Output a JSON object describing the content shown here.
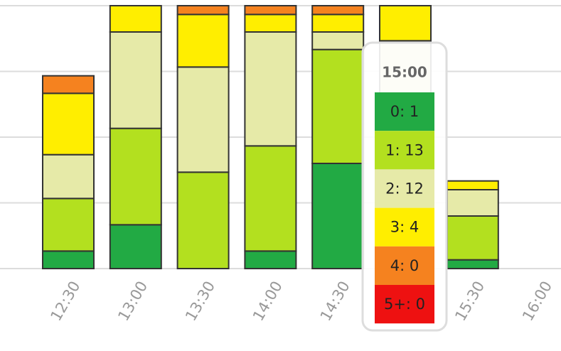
{
  "chart_data": {
    "type": "stacked_bar",
    "categories": [
      "12:30",
      "13:00",
      "13:30",
      "14:00",
      "14:30",
      "15:00",
      "15:30",
      "16:00"
    ],
    "series": [
      {
        "name": "0",
        "color": "#22aa44",
        "values": [
          2,
          5,
          0,
          2,
          12,
          1,
          1,
          0
        ]
      },
      {
        "name": "1",
        "color": "#b3e01f",
        "values": [
          6,
          11,
          11,
          12,
          13,
          13,
          5,
          0
        ]
      },
      {
        "name": "2",
        "color": "#e6eaa8",
        "values": [
          5,
          11,
          12,
          13,
          2,
          12,
          3,
          0
        ]
      },
      {
        "name": "3",
        "color": "#ffee00",
        "values": [
          7,
          3,
          6,
          2,
          2,
          4,
          1,
          0
        ]
      },
      {
        "name": "4",
        "color": "#f5821f",
        "values": [
          2,
          0,
          1,
          1,
          1,
          0,
          0,
          0
        ]
      },
      {
        "name": "5+",
        "color": "#ee1111",
        "values": [
          0,
          0,
          0,
          0,
          0,
          0,
          0,
          0
        ]
      }
    ],
    "ylim": [
      0,
      30
    ],
    "yticks": [
      0,
      7.5,
      15,
      22.5,
      30
    ],
    "grid": true,
    "tooltip": {
      "category": 5,
      "title": "15:00",
      "rows": [
        "0: 1",
        "1: 13",
        "2: 12",
        "3: 4",
        "4: 0",
        "5+: 0"
      ]
    }
  }
}
